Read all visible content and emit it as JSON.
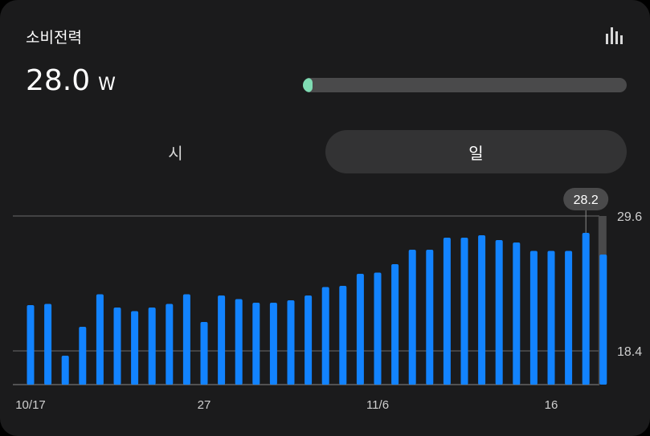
{
  "card": {
    "title": "소비전력",
    "icon": "bar-chart-icon",
    "power_value": "28.0",
    "power_unit": "W",
    "power_progress_fraction": 0.03
  },
  "tabs": {
    "hour_label": "시",
    "day_label": "일",
    "selected": "day"
  },
  "colors": {
    "bar": "#1283ff",
    "progress": "#7fdcb3",
    "background": "#1b1b1c"
  },
  "chart_data": {
    "type": "bar",
    "x": [
      "10/17",
      "10/18",
      "10/19",
      "10/20",
      "10/21",
      "10/22",
      "10/23",
      "10/24",
      "10/25",
      "10/26",
      "10/27",
      "10/28",
      "10/29",
      "10/30",
      "10/31",
      "11/1",
      "11/2",
      "11/3",
      "11/4",
      "11/5",
      "11/6",
      "11/7",
      "11/8",
      "11/9",
      "11/10",
      "11/11",
      "11/12",
      "11/13",
      "11/14",
      "11/15",
      "11/16",
      "11/17",
      "11/18",
      "11/19"
    ],
    "values": [
      22.2,
      22.3,
      18.0,
      20.4,
      23.1,
      22.0,
      21.7,
      22.0,
      22.3,
      23.1,
      20.8,
      23.0,
      22.7,
      22.4,
      22.4,
      22.6,
      23.0,
      23.7,
      23.8,
      24.8,
      24.9,
      25.6,
      26.8,
      26.8,
      27.8,
      27.8,
      28.0,
      27.6,
      27.4,
      26.7,
      26.7,
      26.7,
      28.2,
      26.4
    ],
    "xtick_labels": [
      {
        "label": "10/17",
        "index": 0
      },
      {
        "label": "27",
        "index": 10
      },
      {
        "label": "11/6",
        "index": 20
      },
      {
        "label": "16",
        "index": 30
      }
    ],
    "ytick_labels": [
      "29.6",
      "18.4"
    ],
    "ylim": [
      16.4,
      30.0
    ],
    "highlighted_index": 32,
    "highlight_label": "28.2",
    "grid": true
  }
}
